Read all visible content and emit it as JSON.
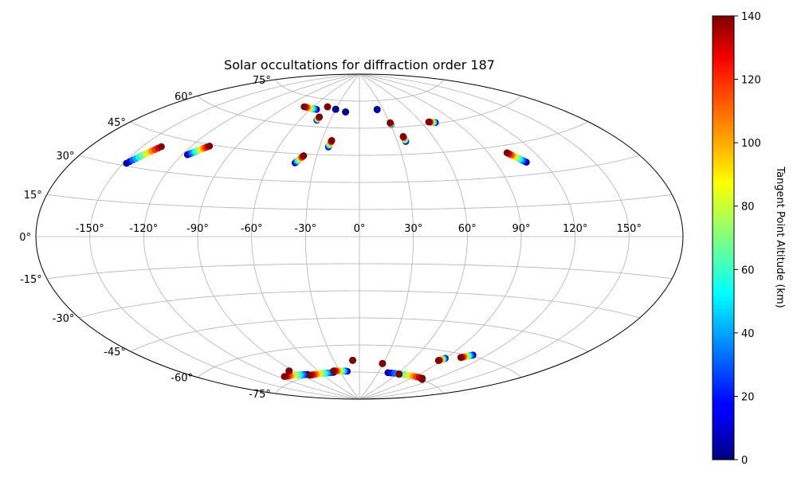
{
  "chart_data": {
    "type": "scatter",
    "projection": "aitoff",
    "title": "Solar occultations for diffraction order 187",
    "lon_ticks": [
      -150,
      -120,
      -90,
      -60,
      -30,
      0,
      30,
      60,
      90,
      120,
      150
    ],
    "lon_tick_labels": [
      "-150°",
      "-120°",
      "-90°",
      "-60°",
      "-30°",
      "0°",
      "30°",
      "60°",
      "90°",
      "120°",
      "150°"
    ],
    "lat_ticks": [
      75,
      60,
      45,
      30,
      15,
      0,
      -15,
      -30,
      -45,
      -60,
      -75
    ],
    "lat_tick_labels": [
      "75°",
      "60°",
      "45°",
      "30°",
      "15°",
      "0°",
      "-15°",
      "-30°",
      "-45°",
      "-60°",
      "-75°"
    ],
    "grid": true,
    "colorbar": {
      "label": "Tangent Point Altitude (km)",
      "colormap": "jet",
      "range": [
        0,
        140
      ],
      "ticks": [
        0,
        20,
        40,
        60,
        80,
        100,
        120,
        140
      ],
      "tick_labels": [
        "0",
        "20",
        "40",
        "60",
        "80",
        "100",
        "120",
        "140"
      ]
    },
    "tracks": [
      {
        "lon_start": -148.3,
        "lat_start": 31.1,
        "lon_end": -138.4,
        "lat_end": 40.2,
        "alt_start": 5,
        "alt_end": 140
      },
      {
        "lon_start": -116.7,
        "lat_start": 38.9,
        "lon_end": -108.4,
        "lat_end": 44.3,
        "alt_start": 5,
        "alt_end": 140
      },
      {
        "lon_start": -43.2,
        "lat_start": 40.0,
        "lon_end": -39.2,
        "lat_end": 44.1,
        "alt_start": 5,
        "alt_end": 140
      },
      {
        "lon_start": -23.4,
        "lat_start": 49.4,
        "lon_end": -22.1,
        "lat_end": 53.0,
        "alt_start": 5,
        "alt_end": 140
      },
      {
        "lon_start": 36.5,
        "lat_start": 52.0,
        "lon_end": 36.2,
        "lat_end": 54.8,
        "alt_start": 5,
        "alt_end": 140
      },
      {
        "lon_start": 109.3,
        "lat_start": 35.9,
        "lon_end": 102.4,
        "lat_end": 41.4,
        "alt_start": 5,
        "alt_end": 140
      },
      {
        "lon_start": 72.5,
        "lat_start": 60.5,
        "lon_end": 67.1,
        "lat_end": 61.2,
        "alt_start": 5,
        "alt_end": 140
      },
      {
        "lon_start": 30.5,
        "lat_start": 61.7,
        "lon_end": 30.3,
        "lat_end": 62.6,
        "alt_start": 5,
        "alt_end": 140
      },
      {
        "lon_start": -43.4,
        "lat_start": 63.6,
        "lon_end": -43.0,
        "lat_end": 65.4,
        "alt_start": 5,
        "alt_end": 140
      },
      {
        "lon_start": -52.9,
        "lat_start": 69.2,
        "lon_end": -70.6,
        "lat_end": 69.7,
        "alt_start": 5,
        "alt_end": 140
      },
      {
        "lon_start": -42.2,
        "lat_start": 71.1,
        "lon_end": -42.2,
        "lat_end": 71.1,
        "alt_start": 5,
        "alt_end": 140
      },
      {
        "lon_start": -30.0,
        "lat_start": 70.1,
        "lon_end": -30.0,
        "lat_end": 70.1,
        "alt_start": 5,
        "alt_end": 5
      },
      {
        "lon_start": -16.7,
        "lat_start": 68.9,
        "lon_end": -16.7,
        "lat_end": 68.9,
        "alt_start": 5,
        "alt_end": 5
      },
      {
        "lon_start": 22.4,
        "lat_start": 70.2,
        "lon_end": 22.4,
        "lat_end": 70.2,
        "alt_start": 5,
        "alt_end": 5
      },
      {
        "lon_start": 108.9,
        "lat_start": -59.4,
        "lon_end": 102.3,
        "lat_end": -61.6,
        "alt_start": 5,
        "alt_end": 140
      },
      {
        "lon_start": 89.9,
        "lat_start": -63.4,
        "lon_end": 86.6,
        "lat_end": -65.0,
        "alt_start": 5,
        "alt_end": 140
      },
      {
        "lon_start": -80.6,
        "lat_start": -73.7,
        "lon_end": -113.1,
        "lat_end": -72.1,
        "alt_start": 5,
        "alt_end": 140
      },
      {
        "lon_start": -40.6,
        "lat_start": -74.6,
        "lon_end": -79.5,
        "lat_end": -74.3,
        "alt_start": 5,
        "alt_end": 140
      },
      {
        "lon_start": -18.8,
        "lat_start": -74.4,
        "lon_end": -38.9,
        "lat_end": -73.8,
        "alt_start": 5,
        "alt_end": 140
      },
      {
        "lon_start": 44.8,
        "lat_start": -74.6,
        "lon_end": 103.8,
        "lat_end": -74.2,
        "alt_start": 5,
        "alt_end": 140
      },
      {
        "lon_start": -95.3,
        "lat_start": -70.4,
        "lon_end": -95.3,
        "lat_end": -70.4,
        "alt_start": 140,
        "alt_end": 140
      },
      {
        "lon_start": -8.0,
        "lat_start": -68.5,
        "lon_end": -8.0,
        "lat_end": -68.5,
        "alt_start": 140,
        "alt_end": 140
      },
      {
        "lon_start": 28.9,
        "lat_start": -69.9,
        "lon_end": 28.9,
        "lat_end": -69.9,
        "alt_start": 140,
        "alt_end": 140
      },
      {
        "lon_start": 63.3,
        "lat_start": -74.6,
        "lon_end": 63.3,
        "lat_end": -74.6,
        "alt_start": 140,
        "alt_end": 140
      },
      {
        "lon_start": 106.5,
        "lat_start": -74.6,
        "lon_end": 106.5,
        "lat_end": -74.6,
        "alt_start": 140,
        "alt_end": 140
      }
    ]
  }
}
